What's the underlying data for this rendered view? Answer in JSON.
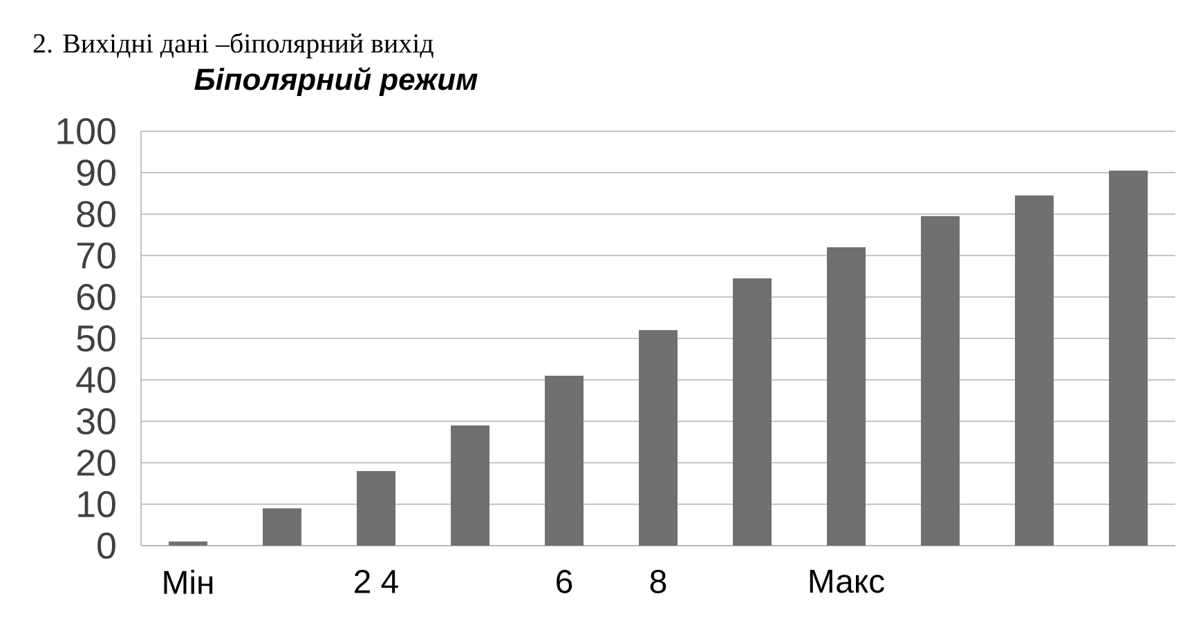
{
  "chart_data": {
    "type": "bar",
    "title": "Біполярний режим",
    "annotations": [
      "2. Вихідні дані –біполярний вихід"
    ],
    "categories": [
      "Мін",
      null,
      "2 4",
      null,
      "6",
      "8",
      null,
      "Макс",
      null,
      null,
      null
    ],
    "values": [
      1,
      9,
      18,
      29,
      41,
      52,
      64.5,
      72,
      79.5,
      84.5,
      90.5
    ],
    "color": "#707070",
    "ylim": [
      0,
      100
    ],
    "yticks": [
      0,
      10,
      20,
      30,
      40,
      50,
      60,
      70,
      80,
      90,
      100
    ],
    "grid": "y"
  }
}
